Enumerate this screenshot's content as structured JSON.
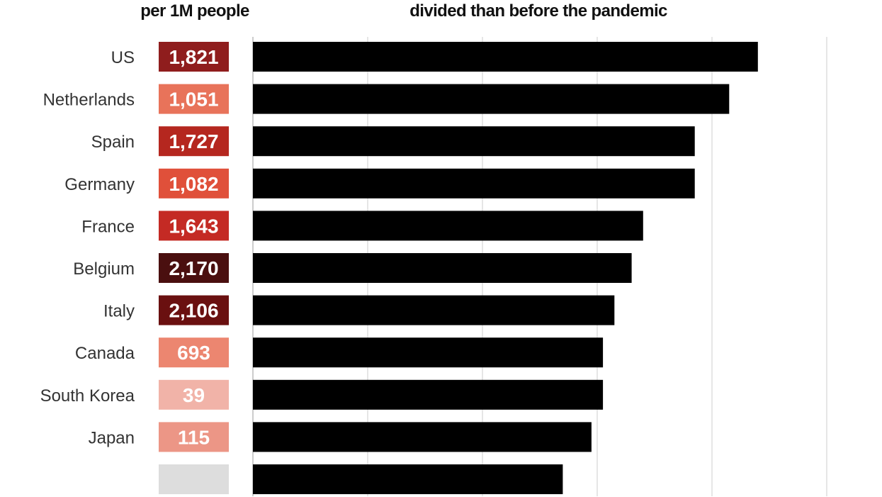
{
  "titles": {
    "left": "per 1M people",
    "right": "divided than before the pandemic"
  },
  "chart_data": {
    "type": "bar",
    "orientation": "horizontal",
    "categories": [
      "US",
      "Netherlands",
      "Spain",
      "Germany",
      "France",
      "Belgium",
      "Italy",
      "Canada",
      "South Korea",
      "Japan",
      ""
    ],
    "values": [
      88,
      83,
      77,
      77,
      68,
      66,
      63,
      61,
      61,
      59,
      54
    ],
    "xlim": [
      0,
      100
    ],
    "grid_ticks": [
      0,
      20,
      40,
      60,
      80,
      100
    ],
    "grid": true,
    "bar_color": "#000000",
    "deaths_per_1m": [
      "1,821",
      "1,051",
      "1,727",
      "1,082",
      "1,643",
      "2,170",
      "2,106",
      "693",
      "39",
      "115",
      ""
    ],
    "deaths_box_colors": [
      "#8f1d1d",
      "#e8735a",
      "#b5271f",
      "#e0503a",
      "#c42a24",
      "#4a0f0f",
      "#6a1010",
      "#ec8670",
      "#f1b3a8",
      "#ec9686",
      "#dddddd"
    ]
  }
}
